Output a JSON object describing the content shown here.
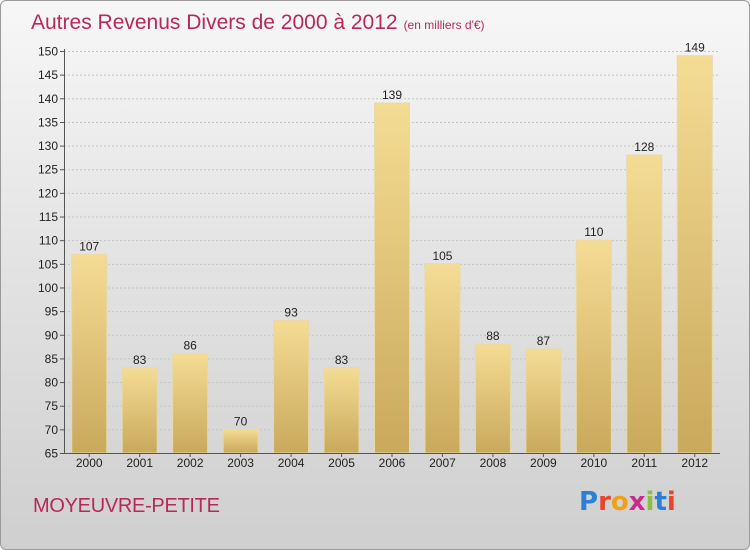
{
  "title": "Autres Revenus Divers de 2000 à 2012",
  "subtitle": "(en milliers d'€)",
  "commune": "MOYEUVRE-PETITE",
  "logo": {
    "text": "Proxiti",
    "letters": [
      "P",
      "r",
      "o",
      "x",
      "i",
      "t",
      "i"
    ],
    "colors": [
      "#2b7fd6",
      "#e8452a",
      "#f0a11a",
      "#cc2a8c",
      "#8cbf3f",
      "#2b7fd6",
      "#e8452a"
    ]
  },
  "colors": {
    "title": "#b8285a",
    "bar_light": "#f5dc94",
    "bar_dark": "#c9a95c"
  },
  "chart_data": {
    "type": "bar",
    "categories": [
      "2000",
      "2001",
      "2002",
      "2003",
      "2004",
      "2005",
      "2006",
      "2007",
      "2008",
      "2009",
      "2010",
      "2011",
      "2012"
    ],
    "values": [
      107,
      83,
      86,
      70,
      93,
      83,
      139,
      105,
      88,
      87,
      110,
      128,
      149
    ],
    "ylim": [
      65,
      150
    ],
    "yticks": [
      65,
      70,
      75,
      80,
      85,
      90,
      95,
      100,
      105,
      110,
      115,
      120,
      125,
      130,
      135,
      140,
      145,
      150
    ],
    "grid": true,
    "title": "Autres Revenus Divers de 2000 à 2012",
    "subtitle": "(en milliers d'€)"
  }
}
